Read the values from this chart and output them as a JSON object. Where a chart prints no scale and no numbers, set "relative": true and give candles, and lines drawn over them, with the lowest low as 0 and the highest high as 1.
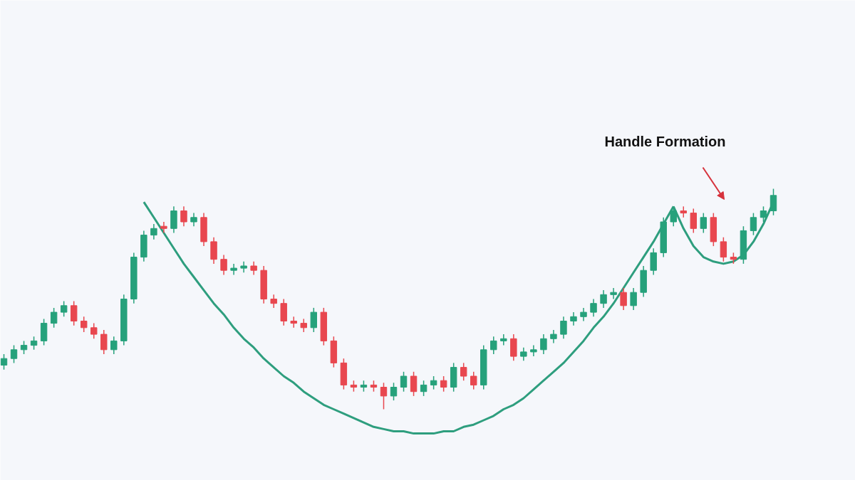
{
  "chart_data": {
    "type": "candlestick",
    "relative": true,
    "categories": [
      null,
      null,
      null,
      null,
      null,
      null,
      null,
      null,
      null,
      null,
      null,
      null,
      null,
      null,
      null,
      null,
      null,
      null,
      null,
      null,
      null,
      null,
      null,
      null,
      null,
      null,
      null,
      null,
      null,
      null,
      null,
      null,
      null,
      null,
      null,
      null,
      null,
      null,
      null,
      null,
      null,
      null,
      null,
      null,
      null,
      null,
      null,
      null,
      null,
      null,
      null,
      null,
      null,
      null,
      null,
      null,
      null,
      null,
      null,
      null,
      null,
      null,
      null,
      null,
      null,
      null,
      null,
      null,
      null,
      null,
      null,
      null,
      null,
      null,
      null,
      null,
      null,
      null
    ],
    "ohlc": [
      [
        0.2,
        0.25,
        0.18,
        0.23
      ],
      [
        0.23,
        0.29,
        0.21,
        0.27
      ],
      [
        0.27,
        0.31,
        0.25,
        0.29
      ],
      [
        0.29,
        0.33,
        0.27,
        0.31
      ],
      [
        0.31,
        0.41,
        0.29,
        0.39
      ],
      [
        0.39,
        0.46,
        0.37,
        0.44
      ],
      [
        0.44,
        0.49,
        0.42,
        0.47
      ],
      [
        0.47,
        0.49,
        0.38,
        0.4
      ],
      [
        0.4,
        0.42,
        0.35,
        0.37
      ],
      [
        0.37,
        0.39,
        0.32,
        0.34
      ],
      [
        0.34,
        0.36,
        0.25,
        0.27
      ],
      [
        0.27,
        0.33,
        0.25,
        0.31
      ],
      [
        0.31,
        0.52,
        0.29,
        0.5
      ],
      [
        0.5,
        0.71,
        0.48,
        0.69
      ],
      [
        0.69,
        0.81,
        0.67,
        0.79
      ],
      [
        0.79,
        0.84,
        0.77,
        0.82
      ],
      [
        0.83,
        0.85,
        0.8,
        0.82
      ],
      [
        0.82,
        0.92,
        0.8,
        0.9
      ],
      [
        0.9,
        0.92,
        0.83,
        0.85
      ],
      [
        0.85,
        0.89,
        0.83,
        0.87
      ],
      [
        0.87,
        0.89,
        0.74,
        0.76
      ],
      [
        0.76,
        0.78,
        0.66,
        0.68
      ],
      [
        0.68,
        0.7,
        0.61,
        0.63
      ],
      [
        0.63,
        0.66,
        0.61,
        0.64
      ],
      [
        0.64,
        0.67,
        0.62,
        0.65
      ],
      [
        0.65,
        0.67,
        0.61,
        0.63
      ],
      [
        0.63,
        0.65,
        0.48,
        0.5
      ],
      [
        0.5,
        0.52,
        0.46,
        0.48
      ],
      [
        0.48,
        0.5,
        0.38,
        0.4
      ],
      [
        0.4,
        0.42,
        0.37,
        0.39
      ],
      [
        0.39,
        0.41,
        0.35,
        0.37
      ],
      [
        0.37,
        0.46,
        0.35,
        0.44
      ],
      [
        0.44,
        0.46,
        0.29,
        0.31
      ],
      [
        0.31,
        0.33,
        0.19,
        0.21
      ],
      [
        0.21,
        0.23,
        0.09,
        0.11
      ],
      [
        0.11,
        0.13,
        0.08,
        0.1
      ],
      [
        0.1,
        0.13,
        0.08,
        0.11
      ],
      [
        0.11,
        0.13,
        0.08,
        0.1
      ],
      [
        0.1,
        0.12,
        0.0,
        0.06
      ],
      [
        0.06,
        0.12,
        0.04,
        0.1
      ],
      [
        0.1,
        0.17,
        0.08,
        0.15
      ],
      [
        0.15,
        0.17,
        0.06,
        0.08
      ],
      [
        0.08,
        0.13,
        0.06,
        0.11
      ],
      [
        0.11,
        0.15,
        0.09,
        0.13
      ],
      [
        0.13,
        0.15,
        0.08,
        0.1
      ],
      [
        0.1,
        0.21,
        0.08,
        0.19
      ],
      [
        0.19,
        0.21,
        0.13,
        0.15
      ],
      [
        0.15,
        0.17,
        0.09,
        0.11
      ],
      [
        0.11,
        0.29,
        0.09,
        0.27
      ],
      [
        0.27,
        0.33,
        0.25,
        0.31
      ],
      [
        0.31,
        0.34,
        0.29,
        0.32
      ],
      [
        0.32,
        0.34,
        0.22,
        0.24
      ],
      [
        0.24,
        0.28,
        0.22,
        0.26
      ],
      [
        0.26,
        0.29,
        0.24,
        0.27
      ],
      [
        0.27,
        0.34,
        0.25,
        0.32
      ],
      [
        0.32,
        0.36,
        0.3,
        0.34
      ],
      [
        0.34,
        0.42,
        0.32,
        0.4
      ],
      [
        0.4,
        0.44,
        0.38,
        0.42
      ],
      [
        0.42,
        0.46,
        0.4,
        0.44
      ],
      [
        0.44,
        0.5,
        0.42,
        0.48
      ],
      [
        0.48,
        0.54,
        0.46,
        0.52
      ],
      [
        0.52,
        0.55,
        0.5,
        0.53
      ],
      [
        0.53,
        0.55,
        0.45,
        0.47
      ],
      [
        0.47,
        0.55,
        0.45,
        0.53
      ],
      [
        0.53,
        0.65,
        0.51,
        0.63
      ],
      [
        0.63,
        0.73,
        0.61,
        0.71
      ],
      [
        0.71,
        0.87,
        0.69,
        0.85
      ],
      [
        0.85,
        0.92,
        0.83,
        0.9
      ],
      [
        0.9,
        0.92,
        0.87,
        0.89
      ],
      [
        0.89,
        0.91,
        0.8,
        0.82
      ],
      [
        0.82,
        0.89,
        0.8,
        0.87
      ],
      [
        0.87,
        0.89,
        0.74,
        0.76
      ],
      [
        0.76,
        0.78,
        0.67,
        0.69
      ],
      [
        0.69,
        0.71,
        0.66,
        0.68
      ],
      [
        0.68,
        0.83,
        0.66,
        0.81
      ],
      [
        0.81,
        0.89,
        0.79,
        0.87
      ],
      [
        0.87,
        0.92,
        0.85,
        0.9
      ],
      [
        0.9,
        1.0,
        0.88,
        0.97
      ]
    ],
    "colors": [
      "#26a17b",
      "#26a17b",
      "#26a17b",
      "#26a17b",
      "#26a17b",
      "#26a17b",
      "#26a17b",
      "#e8474f",
      "#e8474f",
      "#e8474f",
      "#e8474f",
      "#26a17b",
      "#26a17b",
      "#26a17b",
      "#26a17b",
      "#26a17b",
      "#e8474f",
      "#26a17b",
      "#e8474f",
      "#26a17b",
      "#e8474f",
      "#e8474f",
      "#e8474f",
      "#26a17b",
      "#26a17b",
      "#e8474f",
      "#e8474f",
      "#e8474f",
      "#e8474f",
      "#e8474f",
      "#e8474f",
      "#26a17b",
      "#e8474f",
      "#e8474f",
      "#e8474f",
      "#e8474f",
      "#26a17b",
      "#e8474f",
      "#e8474f",
      "#26a17b",
      "#26a17b",
      "#e8474f",
      "#26a17b",
      "#26a17b",
      "#e8474f",
      "#26a17b",
      "#e8474f",
      "#e8474f",
      "#26a17b",
      "#26a17b",
      "#26a17b",
      "#e8474f",
      "#26a17b",
      "#26a17b",
      "#26a17b",
      "#26a17b",
      "#26a17b",
      "#26a17b",
      "#26a17b",
      "#26a17b",
      "#26a17b",
      "#26a17b",
      "#e8474f",
      "#26a17b",
      "#26a17b",
      "#26a17b",
      "#26a17b",
      "#26a17b",
      "#e8474f",
      "#e8474f",
      "#26a17b",
      "#e8474f",
      "#e8474f",
      "#e8474f",
      "#26a17b",
      "#26a17b",
      "#26a17b",
      "#26a17b"
    ],
    "series": [
      {
        "type": "line",
        "color": "#2e9e7e",
        "values": [
          null,
          null,
          null,
          null,
          null,
          null,
          null,
          null,
          null,
          null,
          null,
          null,
          null,
          null,
          0.94,
          0.87,
          0.8,
          0.73,
          0.66,
          0.6,
          0.54,
          0.48,
          0.43,
          0.37,
          0.32,
          0.28,
          0.23,
          0.19,
          0.15,
          0.12,
          0.08,
          0.05,
          0.02,
          0.0,
          -0.02,
          -0.04,
          -0.06,
          -0.08,
          -0.09,
          -0.1,
          -0.1,
          -0.11,
          -0.11,
          -0.11,
          -0.1,
          -0.1,
          -0.08,
          -0.07,
          -0.05,
          -0.03,
          0.0,
          0.02,
          0.05,
          0.09,
          0.13,
          0.17,
          0.21,
          0.26,
          0.31,
          0.37,
          0.42,
          0.48,
          0.55,
          0.62,
          0.69,
          0.76,
          0.84,
          0.92,
          null,
          null,
          null,
          null,
          null,
          null,
          null,
          null,
          null,
          null
        ]
      },
      {
        "type": "line",
        "color": "#2e9e7e",
        "values": [
          null,
          null,
          null,
          null,
          null,
          null,
          null,
          null,
          null,
          null,
          null,
          null,
          null,
          null,
          null,
          null,
          null,
          null,
          null,
          null,
          null,
          null,
          null,
          null,
          null,
          null,
          null,
          null,
          null,
          null,
          null,
          null,
          null,
          null,
          null,
          null,
          null,
          null,
          null,
          null,
          null,
          null,
          null,
          null,
          null,
          null,
          null,
          null,
          null,
          null,
          null,
          null,
          null,
          null,
          null,
          null,
          null,
          null,
          null,
          null,
          null,
          null,
          null,
          null,
          null,
          null,
          null,
          0.92,
          0.82,
          0.74,
          0.69,
          0.67,
          0.66,
          0.67,
          0.7,
          0.76,
          0.84,
          0.94
        ]
      }
    ],
    "annotations": [
      "Handle Formation"
    ]
  }
}
